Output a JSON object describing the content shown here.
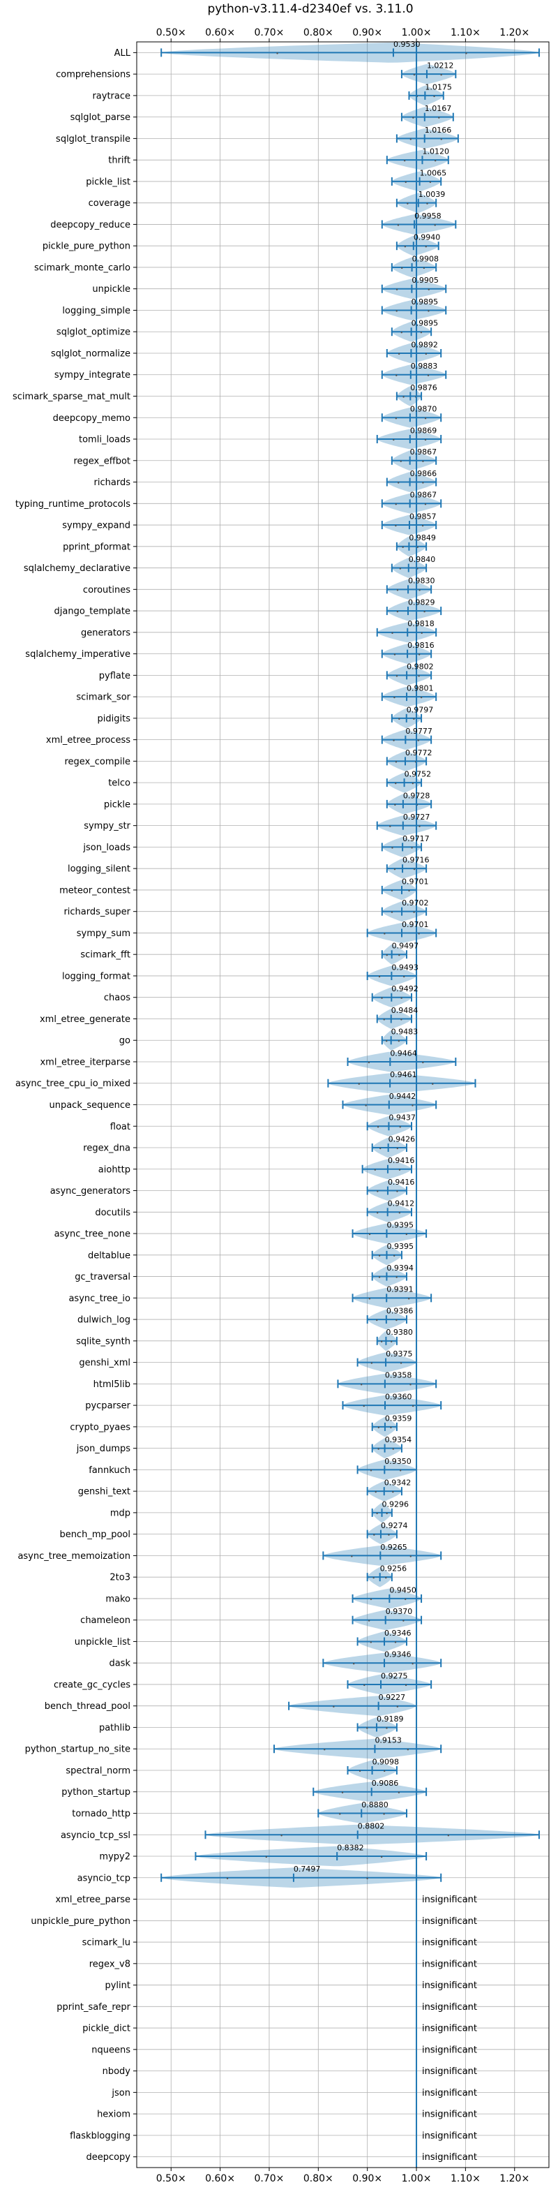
{
  "chart_data": {
    "type": "violin",
    "title": "python-v3.11.4-d2340ef vs. 3.11.0",
    "xlim": [
      0.43,
      1.27
    ],
    "x_ticks": [
      0.5,
      0.6,
      0.7,
      0.8,
      0.9,
      1.0,
      1.1,
      1.2
    ],
    "x_tick_labels": [
      "0.50×",
      "0.60×",
      "0.70×",
      "0.80×",
      "0.90×",
      "1.00×",
      "1.10×",
      "1.20×"
    ],
    "x_tick_positions": [
      "top",
      "bottom"
    ],
    "grid": true,
    "reference_line": 1.0,
    "insignificant_label": "insignificant",
    "benchmarks": [
      {
        "name": "ALL",
        "value": 0.953,
        "label": "0.9530",
        "min": 0.48,
        "max": 1.25
      },
      {
        "name": "comprehensions",
        "value": 1.0212,
        "label": "1.0212",
        "min": 0.97,
        "max": 1.08
      },
      {
        "name": "raytrace",
        "value": 1.0175,
        "label": "1.0175",
        "min": 0.985,
        "max": 1.055
      },
      {
        "name": "sqlglot_parse",
        "value": 1.0167,
        "label": "1.0167",
        "min": 0.97,
        "max": 1.075
      },
      {
        "name": "sqlglot_transpile",
        "value": 1.0166,
        "label": "1.0166",
        "min": 0.96,
        "max": 1.085
      },
      {
        "name": "thrift",
        "value": 1.012,
        "label": "1.0120",
        "min": 0.94,
        "max": 1.065
      },
      {
        "name": "pickle_list",
        "value": 1.0065,
        "label": "1.0065",
        "min": 0.95,
        "max": 1.05
      },
      {
        "name": "coverage",
        "value": 1.0039,
        "label": "1.0039",
        "min": 0.96,
        "max": 1.04
      },
      {
        "name": "deepcopy_reduce",
        "value": 0.9958,
        "label": "0.9958",
        "min": 0.93,
        "max": 1.08
      },
      {
        "name": "pickle_pure_python",
        "value": 0.994,
        "label": "0.9940",
        "min": 0.96,
        "max": 1.045
      },
      {
        "name": "scimark_monte_carlo",
        "value": 0.9908,
        "label": "0.9908",
        "min": 0.95,
        "max": 1.04
      },
      {
        "name": "unpickle",
        "value": 0.9905,
        "label": "0.9905",
        "min": 0.93,
        "max": 1.06
      },
      {
        "name": "logging_simple",
        "value": 0.9895,
        "label": "0.9895",
        "min": 0.93,
        "max": 1.06
      },
      {
        "name": "sqlglot_optimize",
        "value": 0.9895,
        "label": "0.9895",
        "min": 0.95,
        "max": 1.03
      },
      {
        "name": "sqlglot_normalize",
        "value": 0.9892,
        "label": "0.9892",
        "min": 0.94,
        "max": 1.05
      },
      {
        "name": "sympy_integrate",
        "value": 0.9883,
        "label": "0.9883",
        "min": 0.93,
        "max": 1.06
      },
      {
        "name": "scimark_sparse_mat_mult",
        "value": 0.9876,
        "label": "0.9876",
        "min": 0.96,
        "max": 1.01
      },
      {
        "name": "deepcopy_memo",
        "value": 0.987,
        "label": "0.9870",
        "min": 0.93,
        "max": 1.05
      },
      {
        "name": "tomli_loads",
        "value": 0.9869,
        "label": "0.9869",
        "min": 0.92,
        "max": 1.05
      },
      {
        "name": "regex_effbot",
        "value": 0.9867,
        "label": "0.9867",
        "min": 0.95,
        "max": 1.04
      },
      {
        "name": "richards",
        "value": 0.9866,
        "label": "0.9866",
        "min": 0.94,
        "max": 1.04
      },
      {
        "name": "typing_runtime_protocols",
        "value": 0.9867,
        "label": "0.9867",
        "min": 0.93,
        "max": 1.05
      },
      {
        "name": "sympy_expand",
        "value": 0.9857,
        "label": "0.9857",
        "min": 0.93,
        "max": 1.04
      },
      {
        "name": "pprint_pformat",
        "value": 0.9849,
        "label": "0.9849",
        "min": 0.96,
        "max": 1.02
      },
      {
        "name": "sqlalchemy_declarative",
        "value": 0.984,
        "label": "0.9840",
        "min": 0.95,
        "max": 1.02
      },
      {
        "name": "coroutines",
        "value": 0.983,
        "label": "0.9830",
        "min": 0.94,
        "max": 1.03
      },
      {
        "name": "django_template",
        "value": 0.9829,
        "label": "0.9829",
        "min": 0.94,
        "max": 1.05
      },
      {
        "name": "generators",
        "value": 0.9818,
        "label": "0.9818",
        "min": 0.92,
        "max": 1.04
      },
      {
        "name": "sqlalchemy_imperative",
        "value": 0.9816,
        "label": "0.9816",
        "min": 0.93,
        "max": 1.03
      },
      {
        "name": "pyflate",
        "value": 0.9802,
        "label": "0.9802",
        "min": 0.94,
        "max": 1.03
      },
      {
        "name": "scimark_sor",
        "value": 0.9801,
        "label": "0.9801",
        "min": 0.93,
        "max": 1.04
      },
      {
        "name": "pidigits",
        "value": 0.9797,
        "label": "0.9797",
        "min": 0.95,
        "max": 1.01
      },
      {
        "name": "xml_etree_process",
        "value": 0.9777,
        "label": "0.9777",
        "min": 0.93,
        "max": 1.03
      },
      {
        "name": "regex_compile",
        "value": 0.9772,
        "label": "0.9772",
        "min": 0.94,
        "max": 1.02
      },
      {
        "name": "telco",
        "value": 0.9752,
        "label": "0.9752",
        "min": 0.94,
        "max": 1.01
      },
      {
        "name": "pickle",
        "value": 0.9728,
        "label": "0.9728",
        "min": 0.94,
        "max": 1.03
      },
      {
        "name": "sympy_str",
        "value": 0.9727,
        "label": "0.9727",
        "min": 0.92,
        "max": 1.04
      },
      {
        "name": "json_loads",
        "value": 0.9717,
        "label": "0.9717",
        "min": 0.93,
        "max": 1.01
      },
      {
        "name": "logging_silent",
        "value": 0.9716,
        "label": "0.9716",
        "min": 0.94,
        "max": 1.02
      },
      {
        "name": "meteor_contest",
        "value": 0.9701,
        "label": "0.9701",
        "min": 0.93,
        "max": 1.0
      },
      {
        "name": "richards_super",
        "value": 0.9702,
        "label": "0.9702",
        "min": 0.93,
        "max": 1.02
      },
      {
        "name": "sympy_sum",
        "value": 0.9701,
        "label": "0.9701",
        "min": 0.9,
        "max": 1.04
      },
      {
        "name": "scimark_fft",
        "value": 0.9497,
        "label": "0.9497",
        "min": 0.93,
        "max": 0.98
      },
      {
        "name": "logging_format",
        "value": 0.9493,
        "label": "0.9493",
        "min": 0.9,
        "max": 1.0
      },
      {
        "name": "chaos",
        "value": 0.9492,
        "label": "0.9492",
        "min": 0.91,
        "max": 0.99
      },
      {
        "name": "xml_etree_generate",
        "value": 0.9484,
        "label": "0.9484",
        "min": 0.92,
        "max": 0.99
      },
      {
        "name": "go",
        "value": 0.9483,
        "label": "0.9483",
        "min": 0.93,
        "max": 0.98
      },
      {
        "name": "xml_etree_iterparse",
        "value": 0.9464,
        "label": "0.9464",
        "min": 0.86,
        "max": 1.08
      },
      {
        "name": "async_tree_cpu_io_mixed",
        "value": 0.9461,
        "label": "0.9461",
        "min": 0.82,
        "max": 1.12
      },
      {
        "name": "unpack_sequence",
        "value": 0.9442,
        "label": "0.9442",
        "min": 0.85,
        "max": 1.04
      },
      {
        "name": "float",
        "value": 0.9437,
        "label": "0.9437",
        "min": 0.9,
        "max": 0.99
      },
      {
        "name": "regex_dna",
        "value": 0.9426,
        "label": "0.9426",
        "min": 0.91,
        "max": 0.98
      },
      {
        "name": "aiohttp",
        "value": 0.9416,
        "label": "0.9416",
        "min": 0.89,
        "max": 0.99
      },
      {
        "name": "async_generators",
        "value": 0.9416,
        "label": "0.9416",
        "min": 0.9,
        "max": 0.98
      },
      {
        "name": "docutils",
        "value": 0.9412,
        "label": "0.9412",
        "min": 0.9,
        "max": 0.99
      },
      {
        "name": "async_tree_none",
        "value": 0.9395,
        "label": "0.9395",
        "min": 0.87,
        "max": 1.02
      },
      {
        "name": "deltablue",
        "value": 0.9395,
        "label": "0.9395",
        "min": 0.91,
        "max": 0.97
      },
      {
        "name": "gc_traversal",
        "value": 0.9394,
        "label": "0.9394",
        "min": 0.91,
        "max": 0.98
      },
      {
        "name": "async_tree_io",
        "value": 0.9391,
        "label": "0.9391",
        "min": 0.87,
        "max": 1.03
      },
      {
        "name": "dulwich_log",
        "value": 0.9386,
        "label": "0.9386",
        "min": 0.9,
        "max": 0.98
      },
      {
        "name": "sqlite_synth",
        "value": 0.938,
        "label": "0.9380",
        "min": 0.92,
        "max": 0.96
      },
      {
        "name": "genshi_xml",
        "value": 0.9375,
        "label": "0.9375",
        "min": 0.88,
        "max": 1.0
      },
      {
        "name": "html5lib",
        "value": 0.9358,
        "label": "0.9358",
        "min": 0.84,
        "max": 1.04
      },
      {
        "name": "pycparser",
        "value": 0.936,
        "label": "0.9360",
        "min": 0.85,
        "max": 1.05
      },
      {
        "name": "crypto_pyaes",
        "value": 0.9359,
        "label": "0.9359",
        "min": 0.91,
        "max": 0.96
      },
      {
        "name": "json_dumps",
        "value": 0.9354,
        "label": "0.9354",
        "min": 0.91,
        "max": 0.97
      },
      {
        "name": "fannkuch",
        "value": 0.935,
        "label": "0.9350",
        "min": 0.88,
        "max": 1.0
      },
      {
        "name": "genshi_text",
        "value": 0.9342,
        "label": "0.9342",
        "min": 0.9,
        "max": 0.97
      },
      {
        "name": "mdp",
        "value": 0.9296,
        "label": "0.9296",
        "min": 0.91,
        "max": 0.95
      },
      {
        "name": "bench_mp_pool",
        "value": 0.9274,
        "label": "0.9274",
        "min": 0.9,
        "max": 0.96
      },
      {
        "name": "async_tree_memoization",
        "value": 0.9265,
        "label": "0.9265",
        "min": 0.81,
        "max": 1.05
      },
      {
        "name": "2to3",
        "value": 0.9256,
        "label": "0.9256",
        "min": 0.9,
        "max": 0.95
      },
      {
        "name": "mako",
        "value": 0.945,
        "label": "0.9450",
        "min": 0.87,
        "max": 1.01
      },
      {
        "name": "chameleon",
        "value": 0.937,
        "label": "0.9370",
        "min": 0.87,
        "max": 1.01
      },
      {
        "name": "unpickle_list",
        "value": 0.9346,
        "label": "0.9346",
        "min": 0.88,
        "max": 0.98
      },
      {
        "name": "dask",
        "value": 0.9346,
        "label": "0.9346",
        "min": 0.81,
        "max": 1.05
      },
      {
        "name": "create_gc_cycles",
        "value": 0.9275,
        "label": "0.9275",
        "min": 0.86,
        "max": 1.03
      },
      {
        "name": "bench_thread_pool",
        "value": 0.9227,
        "label": "0.9227",
        "min": 0.74,
        "max": 1.0
      },
      {
        "name": "pathlib",
        "value": 0.9189,
        "label": "0.9189",
        "min": 0.88,
        "max": 0.96
      },
      {
        "name": "python_startup_no_site",
        "value": 0.9153,
        "label": "0.9153",
        "min": 0.71,
        "max": 1.05
      },
      {
        "name": "spectral_norm",
        "value": 0.9098,
        "label": "0.9098",
        "min": 0.86,
        "max": 0.96
      },
      {
        "name": "python_startup",
        "value": 0.9086,
        "label": "0.9086",
        "min": 0.79,
        "max": 1.02
      },
      {
        "name": "tornado_http",
        "value": 0.888,
        "label": "0.8880",
        "min": 0.8,
        "max": 0.98
      },
      {
        "name": "asyncio_tcp_ssl",
        "value": 0.8802,
        "label": "0.8802",
        "min": 0.57,
        "max": 1.25
      },
      {
        "name": "mypy2",
        "value": 0.8382,
        "label": "0.8382",
        "min": 0.55,
        "max": 1.02
      },
      {
        "name": "asyncio_tcp",
        "value": 0.7497,
        "label": "0.7497",
        "min": 0.48,
        "max": 1.05
      },
      {
        "name": "xml_etree_parse",
        "insignificant": true
      },
      {
        "name": "unpickle_pure_python",
        "insignificant": true
      },
      {
        "name": "scimark_lu",
        "insignificant": true
      },
      {
        "name": "regex_v8",
        "insignificant": true
      },
      {
        "name": "pylint",
        "insignificant": true
      },
      {
        "name": "pprint_safe_repr",
        "insignificant": true
      },
      {
        "name": "pickle_dict",
        "insignificant": true
      },
      {
        "name": "nqueens",
        "insignificant": true
      },
      {
        "name": "nbody",
        "insignificant": true
      },
      {
        "name": "json",
        "insignificant": true
      },
      {
        "name": "hexiom",
        "insignificant": true
      },
      {
        "name": "flaskblogging",
        "insignificant": true
      },
      {
        "name": "deepcopy",
        "insignificant": true
      }
    ]
  }
}
